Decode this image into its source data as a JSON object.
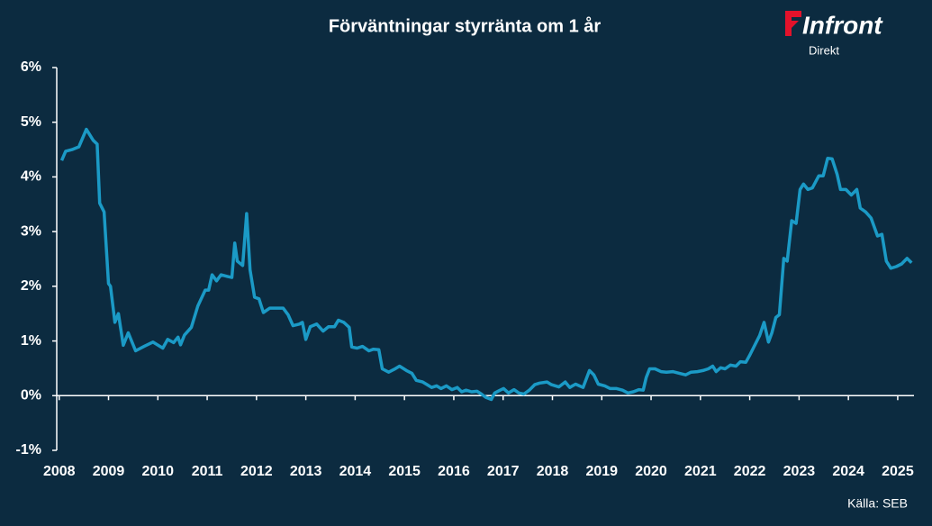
{
  "chart_data": {
    "type": "line",
    "title": "Förväntningar styrränta om 1 år",
    "logo": {
      "name": "Infront",
      "subtitle": "Direkt"
    },
    "source": "Källa:  SEB",
    "xlim": [
      2007.95,
      2025.33
    ],
    "xticks": [
      2008,
      2009,
      2010,
      2011,
      2012,
      2013,
      2014,
      2015,
      2016,
      2017,
      2018,
      2019,
      2020,
      2021,
      2022,
      2023,
      2024,
      2025
    ],
    "ylim": [
      -1,
      6
    ],
    "yticks": [
      {
        "value": -1,
        "label": "-1%"
      },
      {
        "value": 0,
        "label": "0%"
      },
      {
        "value": 1,
        "label": "1%"
      },
      {
        "value": 2,
        "label": "2%"
      },
      {
        "value": 3,
        "label": "3%"
      },
      {
        "value": 4,
        "label": "4%"
      },
      {
        "value": 5,
        "label": "5%"
      },
      {
        "value": 6,
        "label": "6%"
      }
    ],
    "grid": false,
    "series": [
      {
        "name": "SEB",
        "color": "#1b9ac6",
        "x": [
          2008.05,
          2008.13,
          2008.26,
          2008.4,
          2008.55,
          2008.69,
          2008.77,
          2008.82,
          2008.91,
          2009.0,
          2009.04,
          2009.13,
          2009.2,
          2009.3,
          2009.4,
          2009.55,
          2009.72,
          2009.9,
          2010.1,
          2010.2,
          2010.32,
          2010.41,
          2010.46,
          2010.54,
          2010.68,
          2010.81,
          2010.96,
          2011.03,
          2011.1,
          2011.19,
          2011.28,
          2011.41,
          2011.5,
          2011.56,
          2011.61,
          2011.72,
          2011.8,
          2011.87,
          2011.96,
          2012.05,
          2012.14,
          2012.27,
          2012.38,
          2012.54,
          2012.64,
          2012.74,
          2012.87,
          2012.93,
          2013.0,
          2013.09,
          2013.22,
          2013.35,
          2013.46,
          2013.58,
          2013.66,
          2013.77,
          2013.88,
          2013.93,
          2014.04,
          2014.15,
          2014.28,
          2014.37,
          2014.48,
          2014.55,
          2014.68,
          2014.79,
          2014.9,
          2015.04,
          2015.15,
          2015.24,
          2015.37,
          2015.46,
          2015.55,
          2015.65,
          2015.74,
          2015.85,
          2015.96,
          2016.07,
          2016.16,
          2016.25,
          2016.36,
          2016.47,
          2016.56,
          2016.65,
          2016.76,
          2016.83,
          2016.94,
          2017.01,
          2017.11,
          2017.22,
          2017.32,
          2017.42,
          2017.53,
          2017.64,
          2017.74,
          2017.89,
          2017.98,
          2018.13,
          2018.26,
          2018.35,
          2018.47,
          2018.62,
          2018.75,
          2018.84,
          2018.93,
          2019.06,
          2019.17,
          2019.3,
          2019.42,
          2019.53,
          2019.64,
          2019.75,
          2019.84,
          2019.9,
          2019.97,
          2020.08,
          2020.2,
          2020.31,
          2020.44,
          2020.57,
          2020.7,
          2020.81,
          2020.94,
          2021.05,
          2021.16,
          2021.25,
          2021.32,
          2021.41,
          2021.5,
          2021.61,
          2021.72,
          2021.81,
          2021.92,
          2022.0,
          2022.09,
          2022.2,
          2022.29,
          2022.38,
          2022.45,
          2022.53,
          2022.6,
          2022.69,
          2022.76,
          2022.85,
          2022.94,
          2023.02,
          2023.09,
          2023.18,
          2023.27,
          2023.4,
          2023.49,
          2023.58,
          2023.67,
          2023.77,
          2023.84,
          2023.95,
          2024.06,
          2024.17,
          2024.24,
          2024.35,
          2024.46,
          2024.59,
          2024.68,
          2024.77,
          2024.86,
          2024.97,
          2025.08,
          2025.19,
          2025.28
        ],
        "values": [
          4.3,
          4.47,
          4.5,
          4.55,
          4.87,
          4.67,
          4.6,
          3.52,
          3.36,
          2.05,
          2.0,
          1.34,
          1.5,
          0.92,
          1.15,
          0.82,
          0.9,
          0.98,
          0.87,
          1.03,
          0.97,
          1.07,
          0.93,
          1.11,
          1.25,
          1.64,
          1.93,
          1.93,
          2.21,
          2.1,
          2.21,
          2.18,
          2.16,
          2.79,
          2.46,
          2.38,
          3.33,
          2.3,
          1.8,
          1.77,
          1.52,
          1.6,
          1.6,
          1.6,
          1.48,
          1.28,
          1.31,
          1.34,
          1.03,
          1.26,
          1.31,
          1.18,
          1.26,
          1.26,
          1.38,
          1.34,
          1.25,
          0.89,
          0.87,
          0.9,
          0.82,
          0.85,
          0.84,
          0.49,
          0.43,
          0.48,
          0.54,
          0.46,
          0.41,
          0.28,
          0.25,
          0.2,
          0.15,
          0.18,
          0.13,
          0.18,
          0.11,
          0.15,
          0.07,
          0.1,
          0.07,
          0.08,
          0.03,
          -0.03,
          -0.07,
          0.05,
          0.1,
          0.13,
          0.05,
          0.11,
          0.05,
          0.03,
          0.1,
          0.2,
          0.23,
          0.25,
          0.2,
          0.16,
          0.25,
          0.15,
          0.21,
          0.15,
          0.46,
          0.38,
          0.21,
          0.18,
          0.13,
          0.13,
          0.1,
          0.05,
          0.07,
          0.11,
          0.1,
          0.33,
          0.49,
          0.49,
          0.44,
          0.43,
          0.44,
          0.41,
          0.38,
          0.43,
          0.44,
          0.46,
          0.49,
          0.54,
          0.44,
          0.51,
          0.49,
          0.56,
          0.54,
          0.62,
          0.61,
          0.74,
          0.9,
          1.1,
          1.34,
          0.98,
          1.15,
          1.43,
          1.48,
          2.51,
          2.46,
          3.2,
          3.15,
          3.77,
          3.87,
          3.77,
          3.8,
          4.02,
          4.02,
          4.34,
          4.33,
          4.05,
          3.77,
          3.77,
          3.67,
          3.77,
          3.43,
          3.36,
          3.25,
          2.92,
          2.95,
          2.46,
          2.33,
          2.36,
          2.41,
          2.51,
          2.43
        ]
      }
    ]
  }
}
